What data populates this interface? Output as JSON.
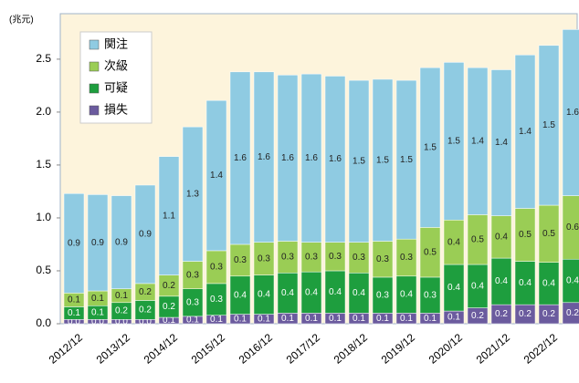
{
  "chart_data": {
    "type": "stacked_bar",
    "y_unit_label": "(兆元)",
    "categories": [
      "2012/12",
      null,
      "2013/12",
      null,
      "2014/12",
      null,
      "2015/12",
      null,
      "2016/12",
      null,
      "2017/12",
      null,
      "2018/12",
      null,
      "2019/12",
      null,
      "2020/12",
      null,
      "2021/12",
      null,
      "2022/12",
      null
    ],
    "series": [
      {
        "name": "損失",
        "color": "#6b5b9e",
        "values": [
          0.04,
          0.04,
          0.04,
          0.04,
          0.06,
          0.07,
          0.08,
          0.09,
          0.09,
          0.1,
          0.1,
          0.1,
          0.1,
          0.1,
          0.1,
          0.1,
          0.12,
          0.15,
          0.18,
          0.18,
          0.18,
          0.2
        ],
        "value_labels": [
          "0.0",
          "0.0",
          "0.0",
          "0.0",
          "0.1",
          "0.1",
          "0.1",
          "0.1",
          "0.1",
          "0.1",
          "0.1",
          "0.1",
          "0.1",
          "0.1",
          "0.1",
          "0.1",
          "0.1",
          "0.2",
          "0.2",
          "0.2",
          "0.2",
          "0.2"
        ]
      },
      {
        "name": "可疑",
        "color": "#1e9e3e",
        "values": [
          0.12,
          0.13,
          0.16,
          0.18,
          0.2,
          0.26,
          0.3,
          0.36,
          0.37,
          0.38,
          0.39,
          0.4,
          0.38,
          0.34,
          0.35,
          0.34,
          0.44,
          0.41,
          0.44,
          0.41,
          0.4,
          0.41
        ],
        "value_labels": [
          "0.1",
          "0.1",
          "0.2",
          "0.2",
          "0.2",
          "0.3",
          "0.3",
          "0.4",
          "0.4",
          "0.4",
          "0.4",
          "0.4",
          "0.4",
          "0.3",
          "0.4",
          "0.3",
          "0.4",
          "0.4",
          "0.4",
          "0.4",
          "0.4",
          "0.4"
        ]
      },
      {
        "name": "次級",
        "color": "#9acd55",
        "values": [
          0.13,
          0.14,
          0.13,
          0.16,
          0.2,
          0.26,
          0.31,
          0.3,
          0.31,
          0.3,
          0.28,
          0.27,
          0.29,
          0.34,
          0.35,
          0.47,
          0.42,
          0.47,
          0.4,
          0.5,
          0.54,
          0.6
        ],
        "value_labels": [
          "0.1",
          "0.1",
          "0.1",
          "0.2",
          "0.2",
          "0.3",
          "0.3",
          "0.3",
          "0.3",
          "0.3",
          "0.3",
          "0.3",
          "0.3",
          "0.3",
          "0.3",
          "0.5",
          "0.4",
          "0.5",
          "0.4",
          "0.5",
          "0.5",
          "0.6"
        ]
      },
      {
        "name": "関注",
        "color": "#8fcbe2",
        "values": [
          0.94,
          0.91,
          0.88,
          0.93,
          1.12,
          1.27,
          1.42,
          1.63,
          1.61,
          1.57,
          1.59,
          1.57,
          1.53,
          1.53,
          1.5,
          1.51,
          1.49,
          1.39,
          1.38,
          1.45,
          1.51,
          1.57
        ],
        "value_labels": [
          "0.9",
          "0.9",
          "0.9",
          "0.9",
          "1.1",
          "1.3",
          "1.4",
          "1.6",
          "1.6",
          "1.6",
          "1.6",
          "1.6",
          "1.5",
          "1.5",
          "1.5",
          "1.5",
          "1.5",
          "1.4",
          "1.4",
          "1.4",
          "1.5",
          "1.6"
        ]
      }
    ],
    "ylim": [
      0,
      2.93
    ],
    "yticks": [
      {
        "value": 0,
        "label": "0.0"
      },
      0.5,
      {
        "value": 1,
        "label": "1.0"
      },
      1.5,
      {
        "value": 2,
        "label": "2.0"
      },
      2.5
    ],
    "legend": "upper left",
    "legend_order": [
      "関注",
      "次級",
      "可疑",
      "損失"
    ]
  }
}
